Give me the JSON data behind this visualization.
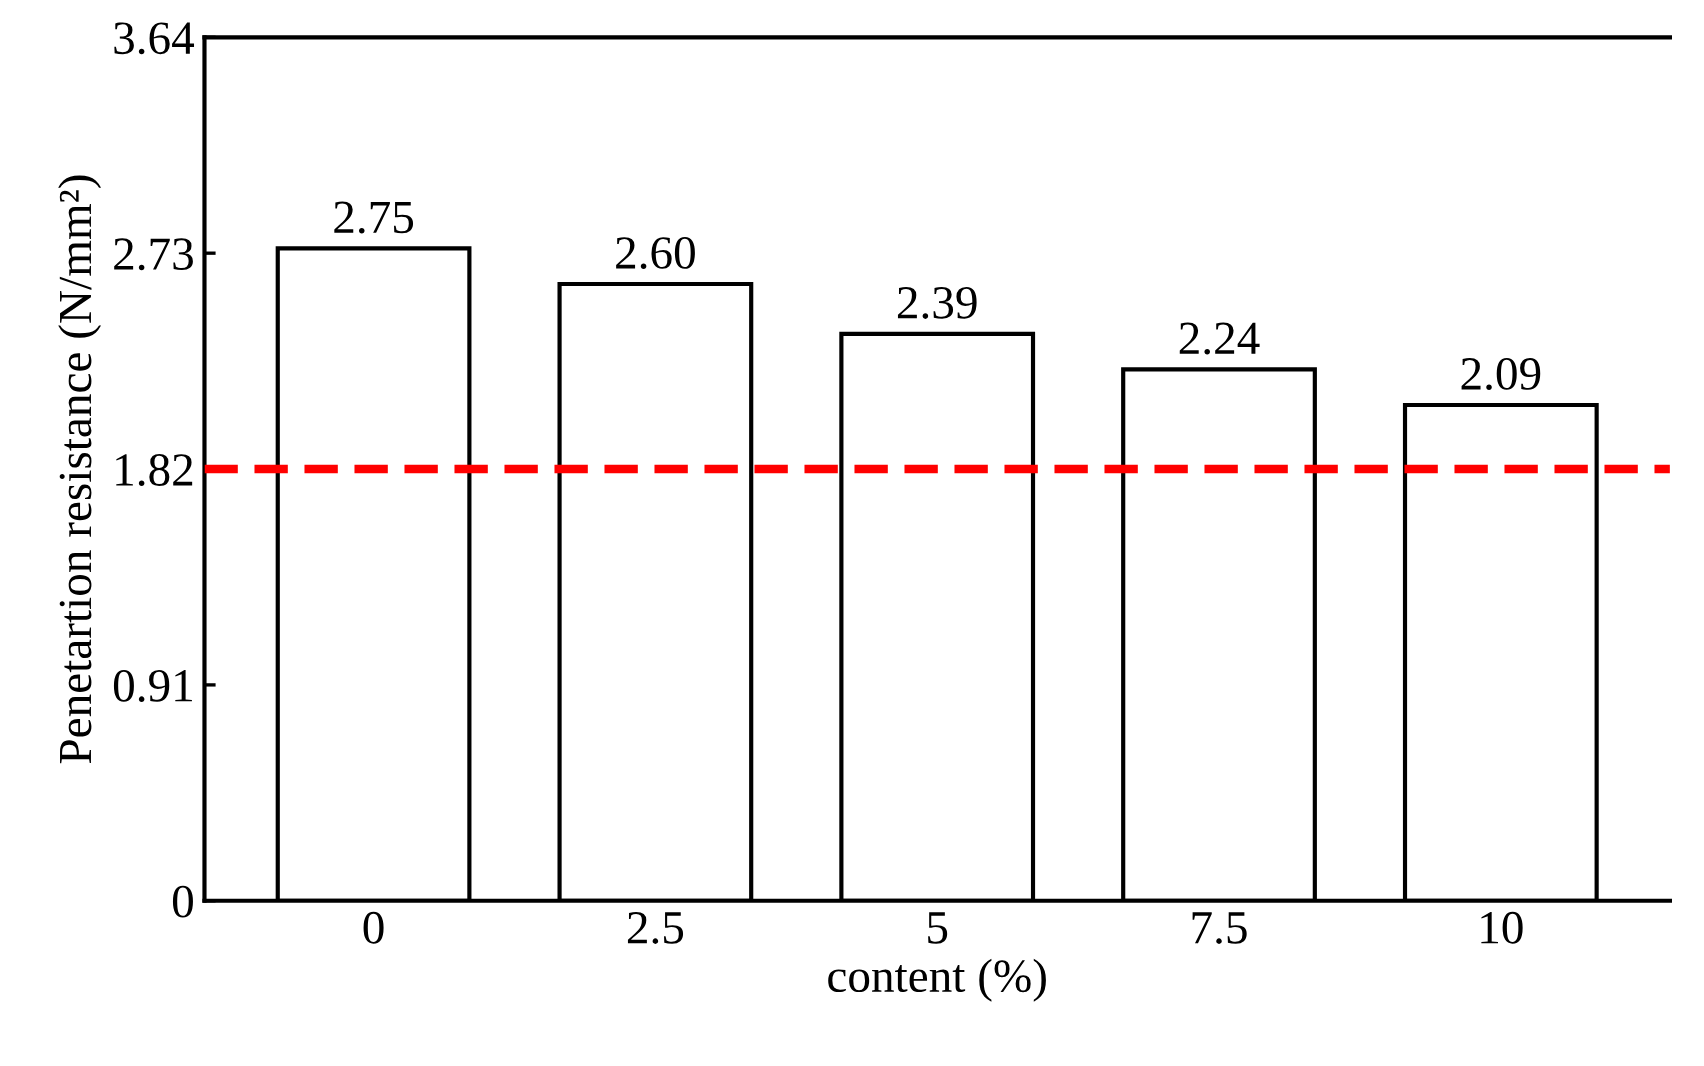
{
  "chart_data": {
    "type": "bar",
    "xlabel": "content (%)",
    "ylabel": "Penetartion resistance (N/mm²)",
    "categories": [
      "0",
      "2.5",
      "5",
      "7.5",
      "10"
    ],
    "values": [
      2.75,
      2.6,
      2.39,
      2.24,
      2.09
    ],
    "value_labels": [
      "2.75",
      "2.60",
      "2.39",
      "2.24",
      "2.09"
    ],
    "color": "#ffffff",
    "ylim": [
      0,
      3.64
    ],
    "yticks": [
      0,
      0.91,
      1.82,
      2.73,
      3.64
    ],
    "grid": false,
    "legend": false,
    "ref_lines": [
      {
        "axis": "y",
        "value": 1.82,
        "color": "#ff0000",
        "line_style": "dashed"
      }
    ]
  }
}
